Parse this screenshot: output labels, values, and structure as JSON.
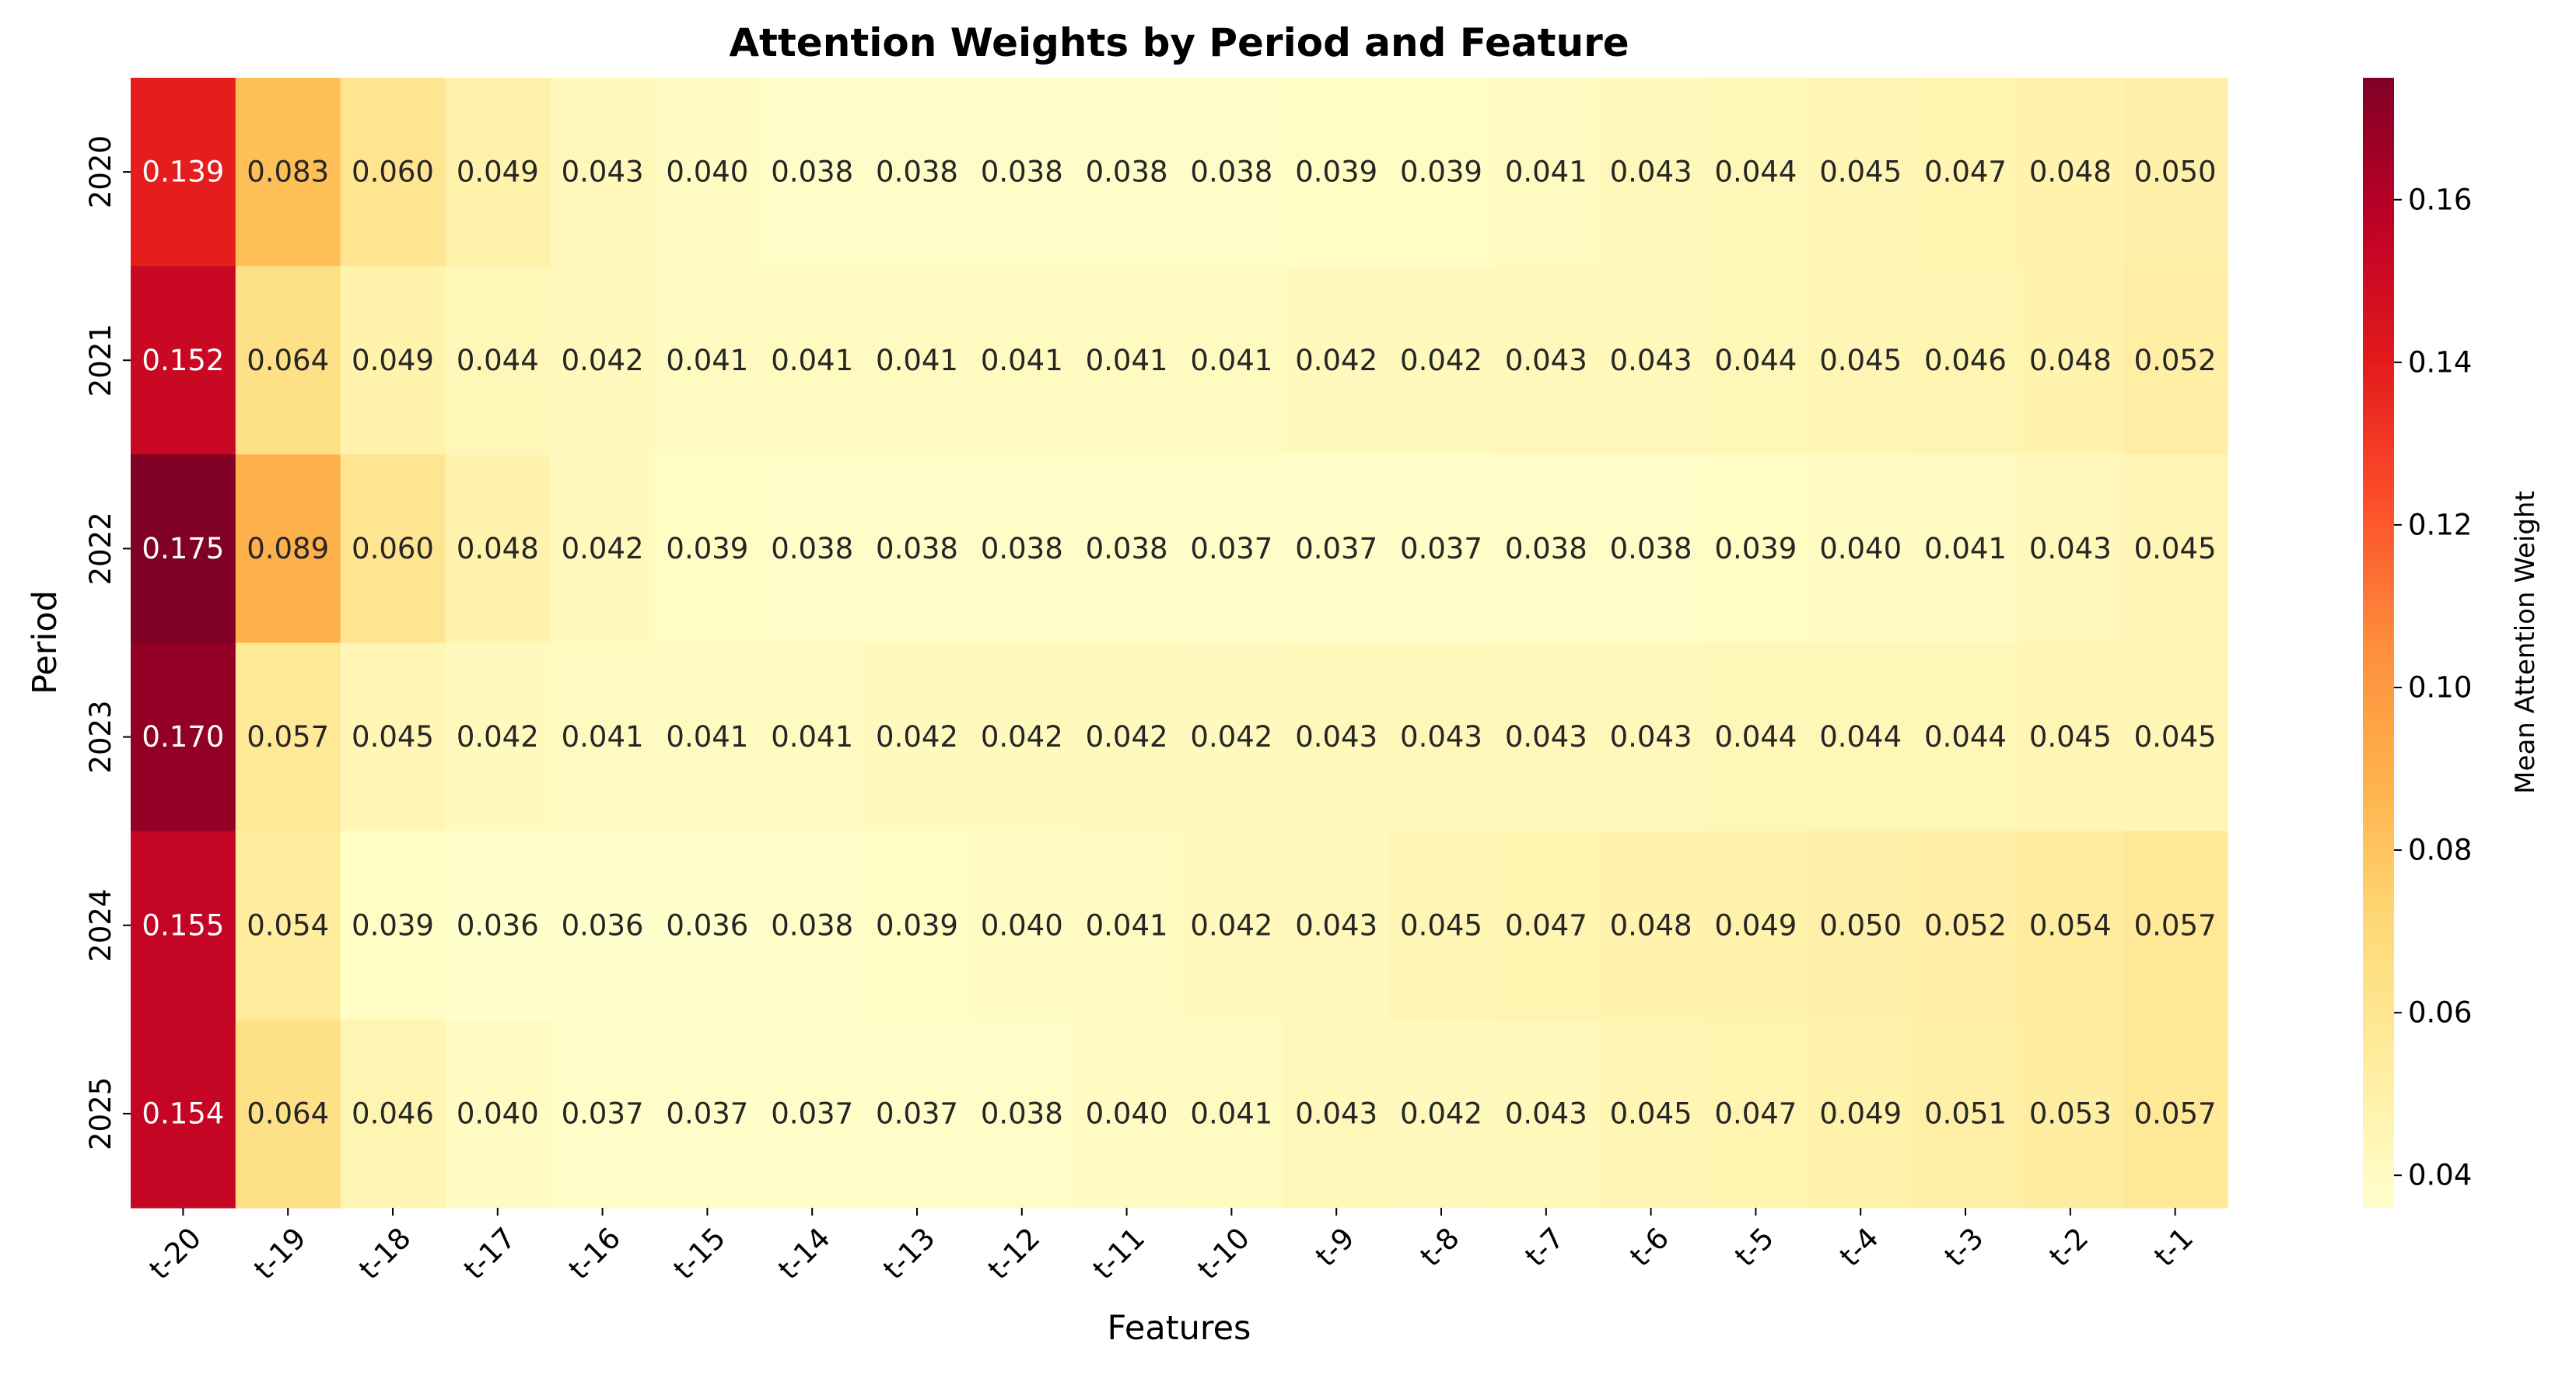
{
  "chart_data": {
    "type": "heatmap",
    "title": "Attention Weights by Period and Feature",
    "xlabel": "Features",
    "ylabel": "Period",
    "colorbar_label": "Mean Attention Weight",
    "colormap": "YlOrRd",
    "value_range": [
      0.036,
      0.175
    ],
    "colorbar_ticks": [
      "0.04",
      "0.06",
      "0.08",
      "0.10",
      "0.12",
      "0.14",
      "0.16"
    ],
    "x_categories": [
      "t-20",
      "t-19",
      "t-18",
      "t-17",
      "t-16",
      "t-15",
      "t-14",
      "t-13",
      "t-12",
      "t-11",
      "t-10",
      "t-9",
      "t-8",
      "t-7",
      "t-6",
      "t-5",
      "t-4",
      "t-3",
      "t-2",
      "t-1"
    ],
    "y_categories": [
      "2020",
      "2021",
      "2022",
      "2023",
      "2024",
      "2025"
    ],
    "values": [
      [
        0.139,
        0.083,
        0.06,
        0.049,
        0.043,
        0.04,
        0.038,
        0.038,
        0.038,
        0.038,
        0.038,
        0.039,
        0.039,
        0.041,
        0.043,
        0.044,
        0.045,
        0.047,
        0.048,
        0.05
      ],
      [
        0.152,
        0.064,
        0.049,
        0.044,
        0.042,
        0.041,
        0.041,
        0.041,
        0.041,
        0.041,
        0.041,
        0.042,
        0.042,
        0.043,
        0.043,
        0.044,
        0.045,
        0.046,
        0.048,
        0.052
      ],
      [
        0.175,
        0.089,
        0.06,
        0.048,
        0.042,
        0.039,
        0.038,
        0.038,
        0.038,
        0.038,
        0.037,
        0.037,
        0.037,
        0.038,
        0.038,
        0.039,
        0.04,
        0.041,
        0.043,
        0.045
      ],
      [
        0.17,
        0.057,
        0.045,
        0.042,
        0.041,
        0.041,
        0.041,
        0.042,
        0.042,
        0.042,
        0.042,
        0.043,
        0.043,
        0.043,
        0.043,
        0.044,
        0.044,
        0.044,
        0.045,
        0.045
      ],
      [
        0.155,
        0.054,
        0.039,
        0.036,
        0.036,
        0.036,
        0.038,
        0.039,
        0.04,
        0.041,
        0.042,
        0.043,
        0.045,
        0.047,
        0.048,
        0.049,
        0.05,
        0.052,
        0.054,
        0.057
      ],
      [
        0.154,
        0.064,
        0.046,
        0.04,
        0.037,
        0.037,
        0.037,
        0.037,
        0.038,
        0.04,
        0.041,
        0.043,
        0.042,
        0.043,
        0.045,
        0.047,
        0.049,
        0.051,
        0.053,
        0.057
      ]
    ],
    "value_format_decimals": 3,
    "legend": "colorbar-right",
    "grid": false
  }
}
